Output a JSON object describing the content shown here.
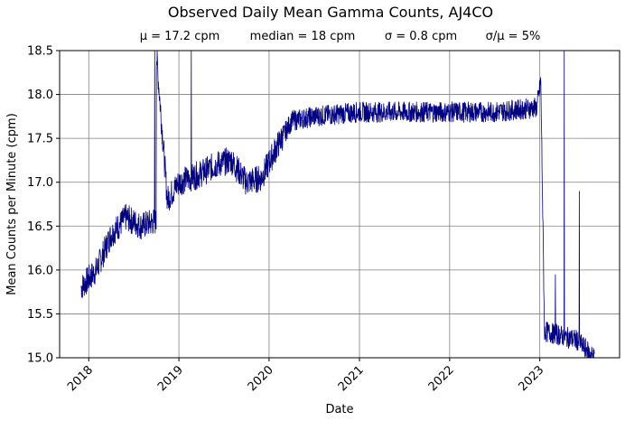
{
  "chart_data": {
    "type": "line",
    "title": "Observed Daily Mean Gamma Counts, AJ4CO",
    "stats": [
      "μ = 17.2 cpm",
      "median = 18 cpm",
      "σ = 0.8 cpm",
      "σ/μ = 5%"
    ],
    "xlabel": "Date",
    "ylabel": "Mean Counts per Minute (cpm)",
    "xlim": [
      "2017-09-05",
      "2023-11-20"
    ],
    "ylim": [
      15.0,
      18.5
    ],
    "x_ticks": [
      "2018",
      "2019",
      "2020",
      "2021",
      "2022",
      "2023"
    ],
    "y_ticks": [
      "15.0",
      "15.5",
      "16.0",
      "16.5",
      "17.0",
      "17.5",
      "18.0",
      "18.5"
    ],
    "grid": true,
    "line_color": "#000080",
    "series": [
      {
        "x": [
          "2017-12-01",
          "2018-02-01",
          "2018-04-01",
          "2018-06-01",
          "2018-08-01",
          "2018-09-20",
          "2018-10-01",
          "2018-11-15",
          "2019-01-01",
          "2019-04-01",
          "2019-06-01",
          "2019-08-01",
          "2019-10-01",
          "2019-12-01",
          "2020-02-01",
          "2020-04-01",
          "2020-07-01",
          "2021-01-01",
          "2021-07-01",
          "2022-01-01",
          "2022-07-01",
          "2022-12-20",
          "2023-01-05",
          "2023-01-20",
          "2023-04-01",
          "2023-06-01",
          "2023-08-10"
        ],
        "values": [
          15.8,
          16.0,
          16.4,
          16.6,
          16.5,
          16.55,
          18.5,
          16.8,
          17.0,
          17.1,
          17.2,
          17.25,
          17.0,
          17.05,
          17.4,
          17.7,
          17.75,
          17.8,
          17.8,
          17.8,
          17.8,
          17.85,
          18.15,
          15.3,
          15.25,
          15.2,
          15.0
        ]
      }
    ],
    "spikes": [
      {
        "x": "2018-09-25",
        "value": 18.5
      },
      {
        "x": "2019-02-20",
        "value": 18.5
      },
      {
        "x": "2023-04-10",
        "value": 18.5
      },
      {
        "x": "2023-06-10",
        "value": 16.9
      },
      {
        "x": "2023-03-05",
        "value": 15.95
      }
    ]
  }
}
